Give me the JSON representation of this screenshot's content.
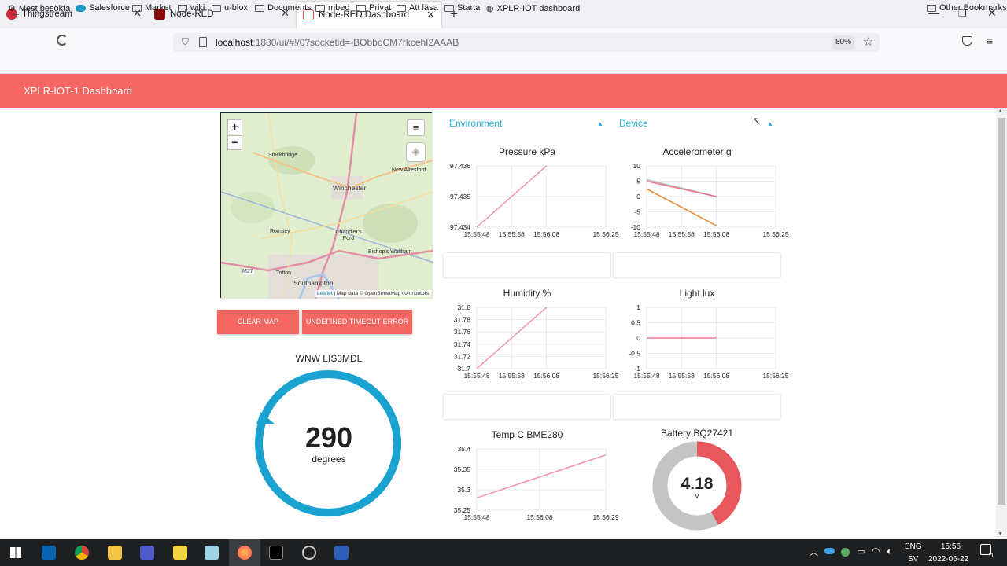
{
  "browser": {
    "tabs": [
      {
        "title": "Thingstream"
      },
      {
        "title": "Node-RED"
      },
      {
        "title": "Node-RED Dashboard"
      }
    ],
    "url": {
      "host": "localhost",
      "rest": ":1880/ui/#!/0?socketid=-BObboCM7rkcehI2AAAB"
    },
    "zoom": "80%",
    "bookmarks": [
      "Mest besökta",
      "Salesforce",
      "Market",
      "wiki",
      "u-blox",
      "Documents",
      "mbed",
      "Privat",
      "Att läsa",
      "Starta",
      "XPLR-IOT dashboard"
    ],
    "other_bookmarks": "Other Bookmarks"
  },
  "dashboard": {
    "title": "XPLR-IOT-1 Dashboard",
    "map": {
      "places": [
        "Stockbridge",
        "Winchester",
        "New Alresford",
        "Romsey",
        "Chandler's Ford",
        "Bishop's Waltham",
        "M27",
        "Totton",
        "Southampton"
      ],
      "attribution_link": "Leaflet",
      "attribution_text": "| Map data © OpenStreetMap contributors"
    },
    "buttons": {
      "clear_map": "CLEAR MAP",
      "timeout": "UNDEFINED TIMEOUT ERROR"
    },
    "compass": {
      "title": "WNW LIS3MDL",
      "value": "290",
      "unit": "degrees",
      "heading_deg": 290
    },
    "groups": {
      "environment": "Environment",
      "device": "Device"
    },
    "battery": {
      "title": "Battery BQ27421",
      "value": "4.18",
      "unit": "v",
      "fraction": 0.42
    }
  },
  "chart_data": [
    {
      "type": "line",
      "title": "Pressure kPa",
      "y_ticks": [
        "97.436",
        "97.435",
        "97.434"
      ],
      "ylim": [
        97.434,
        97.436
      ],
      "x_ticks": [
        "15:55:48",
        "15:55:58",
        "15:56:08",
        "15:56:25"
      ],
      "series": [
        {
          "color": "#f29cad",
          "x": [
            "15:55:48",
            "15:56:08"
          ],
          "values": [
            97.434,
            97.436
          ]
        }
      ]
    },
    {
      "type": "line",
      "title": "Accelerometer g",
      "y_ticks": [
        "10",
        "5",
        "0",
        "-5",
        "-10"
      ],
      "ylim": [
        -10,
        10
      ],
      "x_ticks": [
        "15:55:48",
        "15:55:58",
        "15:56:08",
        "15:56:25"
      ],
      "series": [
        {
          "color": "#bdbdbd",
          "x": [
            "15:55:48",
            "15:56:08"
          ],
          "values": [
            5.5,
            0
          ]
        },
        {
          "color": "#e8758d",
          "x": [
            "15:55:48",
            "15:56:08"
          ],
          "values": [
            5,
            0
          ]
        },
        {
          "color": "#ea8a3a",
          "x": [
            "15:55:48",
            "15:56:08"
          ],
          "values": [
            2.5,
            -9.5
          ]
        }
      ]
    },
    {
      "type": "line",
      "title": "Humidity %",
      "y_ticks": [
        "31.8",
        "31.78",
        "31.76",
        "31.74",
        "31.72",
        "31.7"
      ],
      "ylim": [
        31.7,
        31.8
      ],
      "x_ticks": [
        "15:55:48",
        "15:55:58",
        "15:56:08",
        "15:56:25"
      ],
      "series": [
        {
          "color": "#f29cad",
          "x": [
            "15:55:48",
            "15:56:08"
          ],
          "values": [
            31.7,
            31.8
          ]
        }
      ]
    },
    {
      "type": "line",
      "title": "Light lux",
      "y_ticks": [
        "1",
        "0.5",
        "0",
        "-0.5",
        "-1"
      ],
      "ylim": [
        -1,
        1
      ],
      "x_ticks": [
        "15:55:48",
        "15:55:58",
        "15:56:08",
        "15:56:25"
      ],
      "series": [
        {
          "color": "#e8758d",
          "x": [
            "15:55:48",
            "15:56:08"
          ],
          "values": [
            0,
            0
          ]
        }
      ]
    },
    {
      "type": "line",
      "title": "Temp C BME280",
      "y_ticks": [
        "35.4",
        "35.35",
        "35.3",
        "35.25"
      ],
      "ylim": [
        35.25,
        35.4
      ],
      "x_ticks": [
        "15:55:48",
        "15:56:08",
        "15:56:29"
      ],
      "series": [
        {
          "color": "#f29cad",
          "x": [
            "15:55:48",
            "15:56:29"
          ],
          "values": [
            35.28,
            35.385
          ]
        }
      ]
    }
  ],
  "taskbar": {
    "lang1": "ENG",
    "lang2": "SV",
    "time": "15:56",
    "date": "2022-06-22",
    "notifications": "11"
  }
}
